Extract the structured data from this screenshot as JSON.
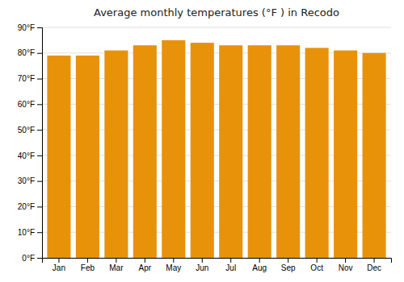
{
  "chart_data": {
    "type": "bar",
    "title": "Average monthly temperatures (°F ) in Recodo",
    "categories": [
      "Jan",
      "Feb",
      "Mar",
      "Apr",
      "May",
      "Jun",
      "Jul",
      "Aug",
      "Sep",
      "Oct",
      "Nov",
      "Dec"
    ],
    "values": [
      79,
      79,
      81,
      83,
      85,
      84,
      83,
      83,
      83,
      82,
      81,
      80
    ],
    "color": "#E8920A",
    "ylim": [
      0,
      90
    ],
    "yticks": [
      {
        "value": 0,
        "label": "0°F"
      },
      {
        "value": 10,
        "label": "10°F"
      },
      {
        "value": 20,
        "label": "20°F"
      },
      {
        "value": 30,
        "label": "30°F"
      },
      {
        "value": 40,
        "label": "40°F"
      },
      {
        "value": 50,
        "label": "50°F"
      },
      {
        "value": 60,
        "label": "60°F"
      },
      {
        "value": 70,
        "label": "70°F"
      },
      {
        "value": 80,
        "label": "80°F"
      },
      {
        "value": 90,
        "label": "90°F"
      }
    ],
    "grid": true
  }
}
